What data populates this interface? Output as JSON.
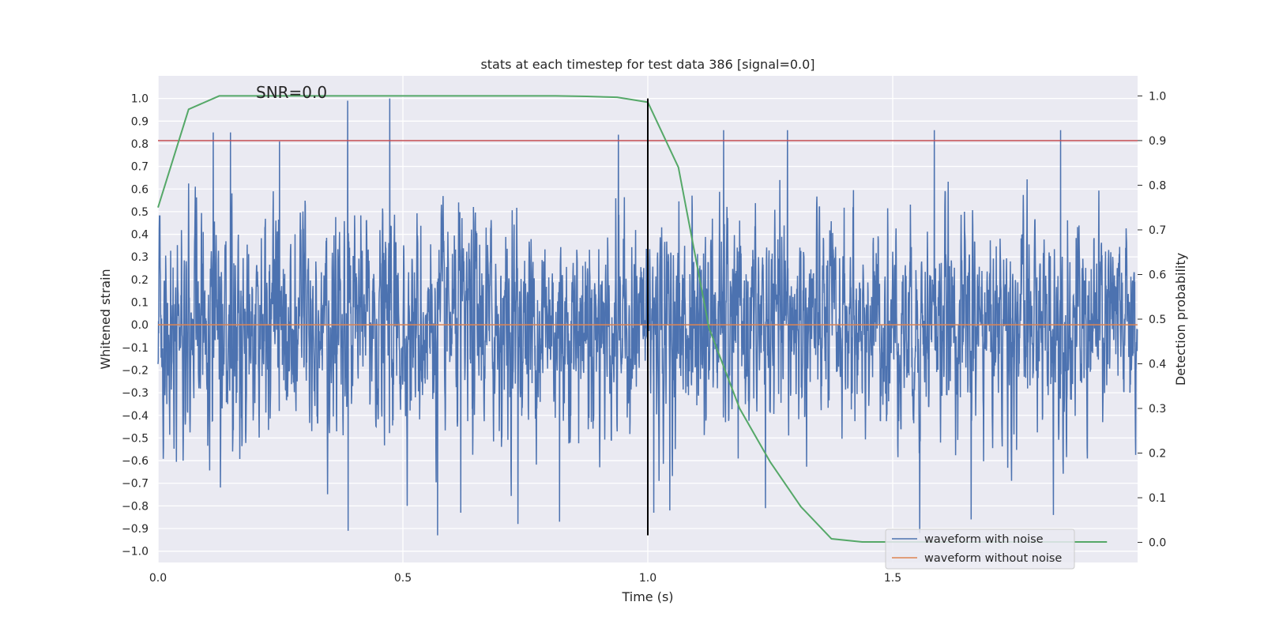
{
  "chart_data": {
    "type": "line",
    "title": "stats at each timestep for test data 386 [signal=0.0]",
    "xlabel": "Time (s)",
    "ylabel": "Whitened strain",
    "y2label": "Detection probability",
    "xlim": [
      0.0,
      2.0
    ],
    "ylim": [
      -1.05,
      1.1
    ],
    "y2lim": [
      -0.045,
      1.045
    ],
    "xticks": [
      0.0,
      0.5,
      1.0,
      1.5
    ],
    "yticks": [
      -1.0,
      -0.9,
      -0.8,
      -0.7,
      -0.6,
      -0.5,
      -0.4,
      -0.3,
      -0.2,
      -0.1,
      0.0,
      0.1,
      0.2,
      0.3,
      0.4,
      0.5,
      0.6,
      0.7,
      0.8,
      0.9,
      1.0
    ],
    "y2ticks": [
      0.0,
      0.1,
      0.2,
      0.3,
      0.4,
      0.5,
      0.6,
      0.7,
      0.8,
      0.9,
      1.0
    ],
    "grid": true,
    "legend_position": "bottom-right",
    "annotation": "SNR=0.0",
    "series": [
      {
        "name": "waveform with noise",
        "axis": "left",
        "color": "#4c72b0",
        "sample_rate": 2048,
        "duration": 2.0,
        "amplitude_range": [
          -0.94,
          1.0
        ],
        "peaks": [
          {
            "x": 0.113,
            "y": 0.85
          },
          {
            "x": 0.148,
            "y": 0.85
          },
          {
            "x": 0.248,
            "y": 0.81
          },
          {
            "x": 0.387,
            "y": 0.99
          },
          {
            "x": 0.473,
            "y": 1.0
          },
          {
            "x": 0.94,
            "y": 0.84
          },
          {
            "x": 1.155,
            "y": 0.86
          },
          {
            "x": 1.285,
            "y": 0.86
          },
          {
            "x": 1.585,
            "y": 0.86
          },
          {
            "x": 1.843,
            "y": 0.86
          },
          {
            "x": 0.388,
            "y": -0.91
          },
          {
            "x": 0.571,
            "y": -0.93
          },
          {
            "x": 0.618,
            "y": -0.83
          },
          {
            "x": 0.735,
            "y": -0.88
          },
          {
            "x": 0.82,
            "y": -0.87
          },
          {
            "x": 1.012,
            "y": -0.83
          },
          {
            "x": 1.045,
            "y": -0.82
          },
          {
            "x": 1.24,
            "y": -0.81
          },
          {
            "x": 1.555,
            "y": -0.92
          },
          {
            "x": 1.66,
            "y": -0.86
          },
          {
            "x": 1.828,
            "y": -0.84
          }
        ]
      },
      {
        "name": "waveform without noise",
        "axis": "left",
        "color": "#dd8452",
        "x": [
          0.0,
          2.0
        ],
        "y": [
          0.0,
          0.0
        ]
      },
      {
        "axis": "right",
        "color": "#55a868",
        "x": [
          0.0,
          0.0625,
          0.125,
          0.1875,
          0.25,
          0.3125,
          0.375,
          0.4375,
          0.5,
          0.5625,
          0.625,
          0.6875,
          0.75,
          0.8125,
          0.875,
          0.9375,
          1.0,
          1.0625,
          1.125,
          1.1875,
          1.25,
          1.3125,
          1.375,
          1.4375,
          1.5,
          1.5625,
          1.625,
          1.6875,
          1.75,
          1.8125,
          1.875,
          1.9375
        ],
        "y": [
          0.75,
          0.97,
          1.0,
          1.0,
          1.0,
          1.0,
          1.0,
          1.0,
          1.0,
          1.0,
          1.0,
          1.0,
          1.0,
          1.0,
          0.999,
          0.997,
          0.986,
          0.84,
          0.48,
          0.3,
          0.18,
          0.08,
          0.008,
          0.001,
          0.001,
          0.001,
          0.001,
          0.001,
          0.001,
          0.001,
          0.001,
          0.001
        ]
      }
    ],
    "threshold_line": {
      "axis": "right",
      "y": 0.9,
      "color": "#c44e52"
    },
    "marker_line": {
      "x": 1.0,
      "y_from": -0.93,
      "y_to": 1.0,
      "color": "#000000"
    }
  }
}
